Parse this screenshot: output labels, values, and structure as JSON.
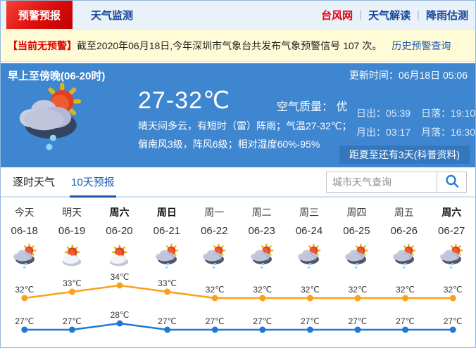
{
  "topbar": {
    "tab_alert": "预警预报",
    "tab_monitor": "天气监测",
    "link_typhoon": "台风网",
    "link_interpret": "天气解读",
    "link_rain": "降雨估测",
    "separator": "|"
  },
  "alert_bar": {
    "badge": "【当前无预警】",
    "text": "截至2020年06月18日,今年深圳市气象台共发布气象预警信号 107 次。",
    "link": "历史预警查询"
  },
  "current": {
    "period_title": "早上至傍晚(06-20时)",
    "update_time": "更新时间：06月18日 05:06",
    "icon": "sun-shower",
    "temp_range": "27-32℃",
    "air_quality": "空气质量： 优",
    "description": "晴天间多云，有短时（雷）阵雨；气温27-32℃；偏南风3级，阵风6级；相对湿度60%-95%",
    "sunrise": "日出：05:39",
    "sunset": "日落：19:10",
    "moonrise": "月出：03:17",
    "moonset": "月落：16:30",
    "solstice_note": "距夏至还有3天(科普资料)"
  },
  "tabs": {
    "hourly": "逐时天气",
    "ten_day": "10天预报"
  },
  "search": {
    "placeholder": "城市天气查询"
  },
  "chart_data": {
    "type": "line",
    "title": "10天预报",
    "categories": [
      "今天",
      "明天",
      "周六",
      "周日",
      "周一",
      "周二",
      "周三",
      "周四",
      "周五",
      "周六"
    ],
    "dates": [
      "06-18",
      "06-19",
      "06-20",
      "06-21",
      "06-22",
      "06-23",
      "06-24",
      "06-25",
      "06-26",
      "06-27"
    ],
    "bold_days": [
      false,
      false,
      true,
      true,
      false,
      false,
      false,
      false,
      false,
      true
    ],
    "icons": [
      "sun-shower",
      "partly-cloudy",
      "partly-cloudy",
      "sun-shower",
      "sun-shower",
      "sun-shower",
      "sun-shower",
      "sun-shower",
      "sun-shower",
      "sun-shower"
    ],
    "series": [
      {
        "name": "high",
        "color": "#f9a11b",
        "values": [
          32,
          33,
          34,
          33,
          32,
          32,
          32,
          32,
          32,
          32
        ]
      },
      {
        "name": "low",
        "color": "#2176d9",
        "values": [
          27,
          27,
          28,
          27,
          27,
          27,
          27,
          27,
          27,
          27
        ]
      }
    ],
    "unit": "℃",
    "legend": "off",
    "grid": "off"
  },
  "colors": {
    "panel_blue": "#3e86cf",
    "badge_blue": "#3577bd",
    "alert_red": "#e00000",
    "link_blue": "#16449c",
    "high_line": "#f9a11b",
    "low_line": "#2176d9"
  }
}
